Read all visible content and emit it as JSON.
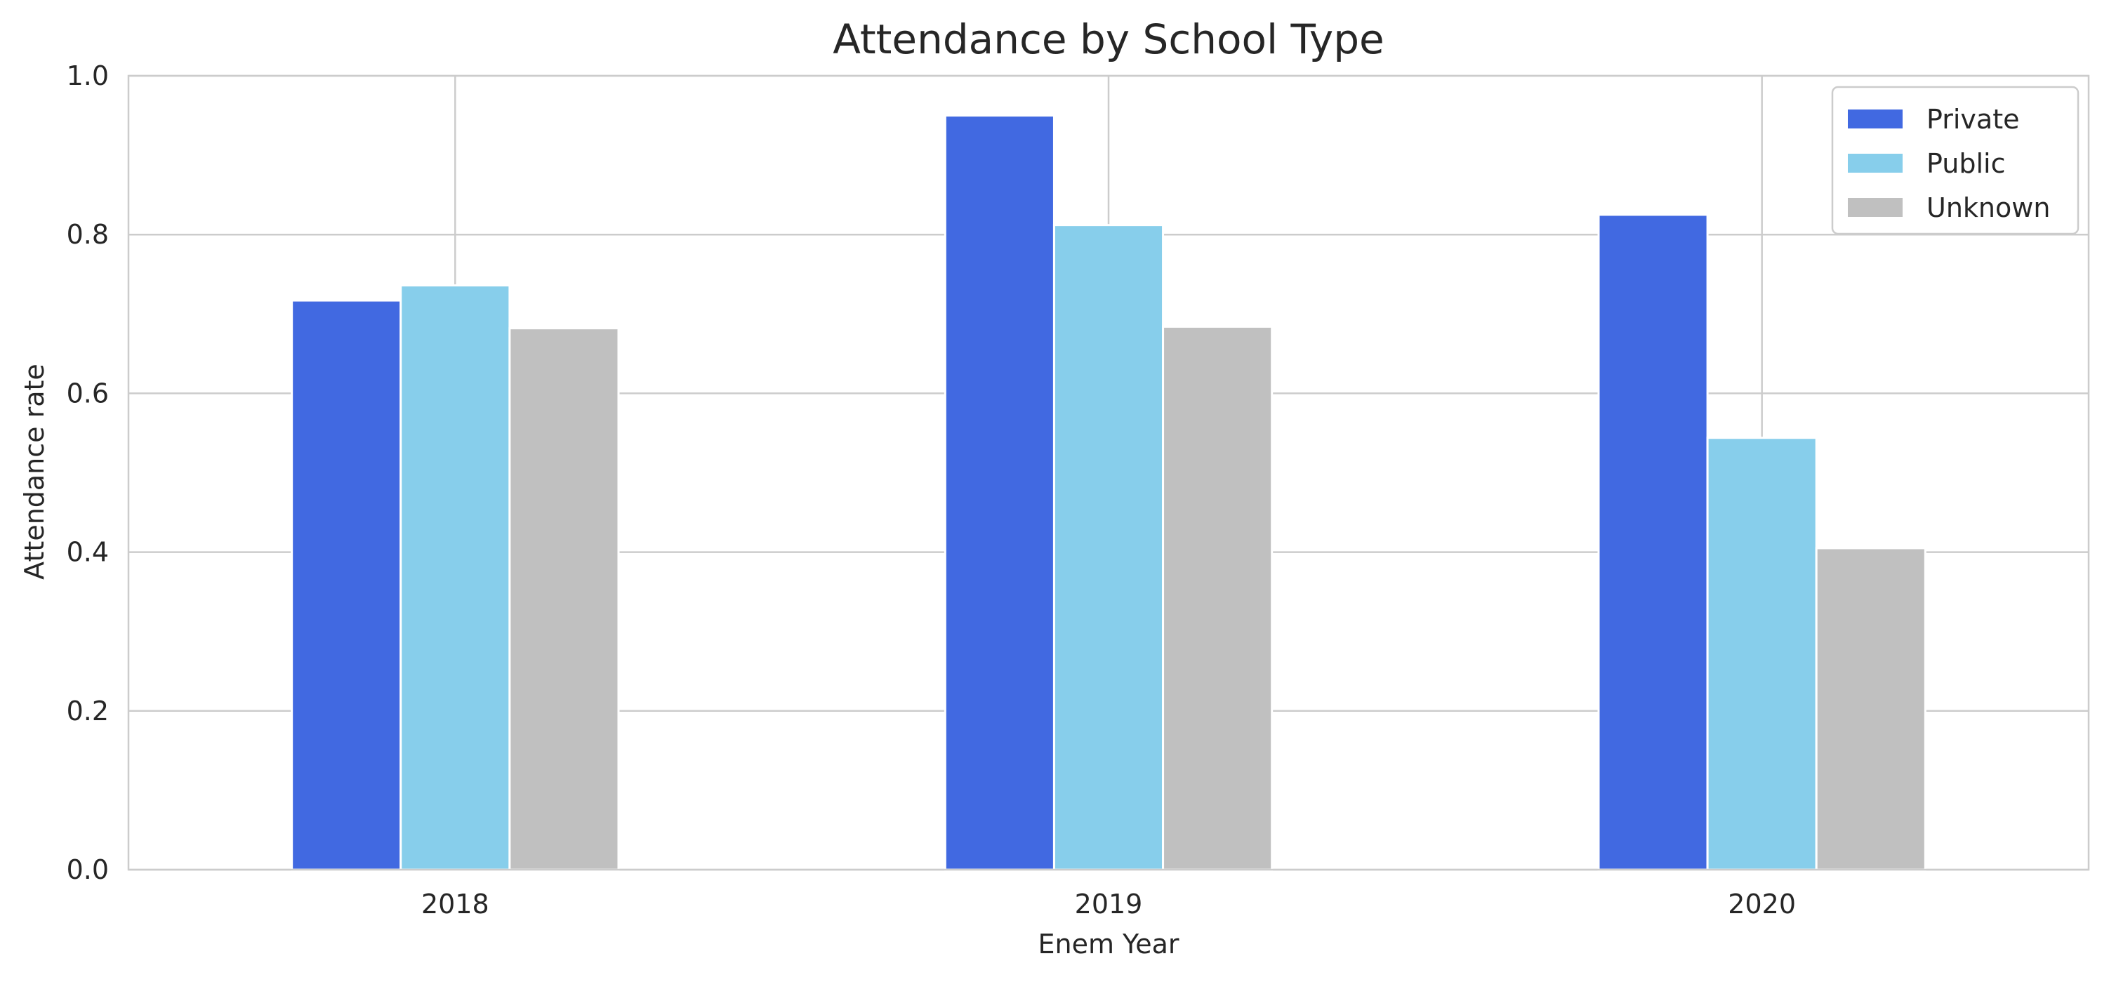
{
  "chart_data": {
    "type": "bar",
    "title": "Attendance by School Type",
    "xlabel": "Enem Year",
    "ylabel": "Attendance rate",
    "categories": [
      "2018",
      "2019",
      "2020"
    ],
    "series": [
      {
        "name": "Private",
        "color": "#4169E1",
        "values": [
          0.717,
          0.95,
          0.825
        ]
      },
      {
        "name": "Public",
        "color": "#87CEEB",
        "values": [
          0.736,
          0.812,
          0.544
        ]
      },
      {
        "name": "Unknown",
        "color": "#C0C0C0",
        "values": [
          0.682,
          0.684,
          0.405
        ]
      }
    ],
    "ylim": [
      0,
      1.0
    ],
    "yticks": [
      "0.0",
      "0.2",
      "0.4",
      "0.6",
      "0.8",
      "1.0"
    ],
    "grid": true,
    "legend_position": "top-right"
  }
}
